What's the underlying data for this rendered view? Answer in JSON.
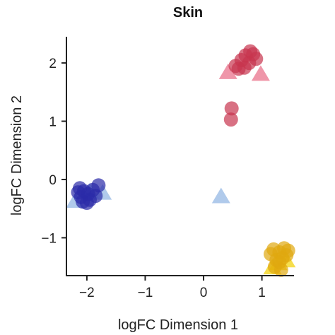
{
  "chart_data": {
    "type": "scatter",
    "title": "Skin",
    "xlabel": "logFC Dimension 1",
    "ylabel": "logFC Dimension 2",
    "xlim": [
      -2.35,
      1.55
    ],
    "ylim": [
      -1.65,
      2.45
    ],
    "xticks": [
      -2,
      -1,
      0,
      1
    ],
    "yticks": [
      -1,
      0,
      1,
      2
    ],
    "xtick_labels": [
      "−2",
      "−1",
      "0",
      "1"
    ],
    "ytick_labels": [
      "−1",
      "0",
      "1",
      "2"
    ],
    "grid": false,
    "legend": "none",
    "series": [
      {
        "marker": "circle",
        "color": "#2b2ba8",
        "points": [
          [
            -2.05,
            -0.2
          ],
          [
            -1.98,
            -0.25
          ],
          [
            -2.1,
            -0.3
          ],
          [
            -1.95,
            -0.35
          ],
          [
            -1.85,
            -0.28
          ],
          [
            -2.15,
            -0.22
          ],
          [
            -1.9,
            -0.18
          ],
          [
            -2.0,
            -0.4
          ],
          [
            -2.07,
            -0.38
          ],
          [
            -1.8,
            -0.1
          ],
          [
            -2.12,
            -0.15
          ]
        ]
      },
      {
        "marker": "triangle",
        "color": "#8fb3e3",
        "points": [
          [
            -2.2,
            -0.38
          ],
          [
            -1.73,
            -0.24
          ],
          [
            0.3,
            -0.3
          ],
          [
            -1.95,
            -0.22
          ]
        ]
      },
      {
        "marker": "circle",
        "color": "#c7344f",
        "points": [
          [
            0.72,
            2.13
          ],
          [
            0.8,
            2.2
          ],
          [
            0.65,
            2.05
          ],
          [
            0.78,
            2.0
          ],
          [
            0.9,
            2.07
          ],
          [
            0.6,
            1.9
          ],
          [
            0.55,
            1.95
          ],
          [
            0.7,
            1.92
          ],
          [
            0.85,
            2.15
          ],
          [
            0.48,
            1.22
          ],
          [
            0.47,
            1.03
          ]
        ]
      },
      {
        "marker": "triangle",
        "color": "#e86a85",
        "points": [
          [
            0.42,
            1.83
          ],
          [
            0.98,
            1.8
          ]
        ]
      },
      {
        "marker": "circle",
        "color": "#e0a810",
        "points": [
          [
            1.2,
            -1.2
          ],
          [
            1.3,
            -1.25
          ],
          [
            1.38,
            -1.18
          ],
          [
            1.25,
            -1.38
          ],
          [
            1.35,
            -1.35
          ],
          [
            1.15,
            -1.28
          ],
          [
            1.3,
            -1.42
          ],
          [
            1.42,
            -1.3
          ],
          [
            1.22,
            -1.5
          ],
          [
            1.33,
            -1.55
          ],
          [
            1.45,
            -1.22
          ]
        ]
      },
      {
        "marker": "triangle",
        "color": "#f2d000",
        "points": [
          [
            1.28,
            -1.45
          ],
          [
            1.42,
            -1.4
          ],
          [
            1.18,
            -1.52
          ]
        ]
      }
    ]
  }
}
